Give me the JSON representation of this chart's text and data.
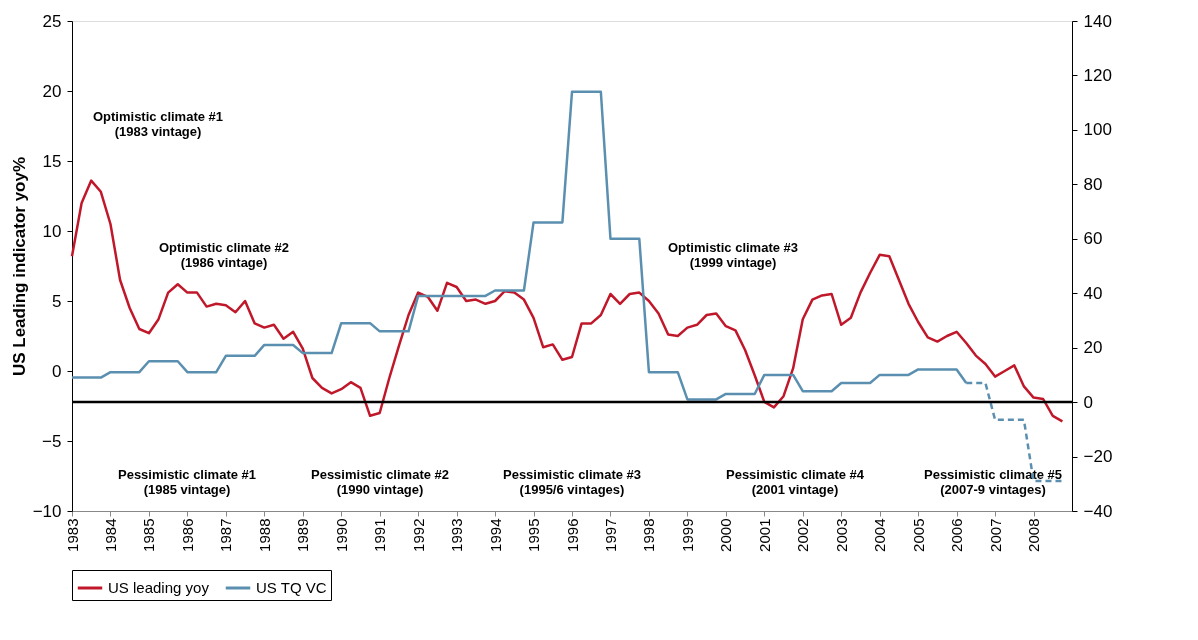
{
  "chart_data": {
    "type": "line",
    "ylabel": "US Leading indicator yoy%",
    "x": [
      1983,
      1983.25,
      1983.5,
      1983.75,
      1984,
      1984.25,
      1984.5,
      1984.75,
      1985,
      1985.25,
      1985.5,
      1985.75,
      1986,
      1986.25,
      1986.5,
      1986.75,
      1987,
      1987.25,
      1987.5,
      1987.75,
      1988,
      1988.25,
      1988.5,
      1988.75,
      1989,
      1989.25,
      1989.5,
      1989.75,
      1990,
      1990.25,
      1990.5,
      1990.75,
      1991,
      1991.25,
      1991.5,
      1991.75,
      1992,
      1992.25,
      1992.5,
      1992.75,
      1993,
      1993.25,
      1993.5,
      1993.75,
      1994,
      1994.25,
      1994.5,
      1994.75,
      1995,
      1995.25,
      1995.5,
      1995.75,
      1996,
      1996.25,
      1996.5,
      1996.75,
      1997,
      1997.25,
      1997.5,
      1997.75,
      1998,
      1998.25,
      1998.5,
      1998.75,
      1999,
      1999.25,
      1999.5,
      1999.75,
      2000,
      2000.25,
      2000.5,
      2000.75,
      2001,
      2001.25,
      2001.5,
      2001.75,
      2002,
      2002.25,
      2002.5,
      2002.75,
      2003,
      2003.25,
      2003.5,
      2003.75,
      2004,
      2004.25,
      2004.5,
      2004.75,
      2005,
      2005.25,
      2005.5,
      2005.75,
      2006,
      2006.25,
      2006.5,
      2006.75,
      2007,
      2007.25,
      2007.5,
      2007.75,
      2008,
      2008.25,
      2008.5,
      2008.75
    ],
    "series": [
      {
        "name": "US leading yoy",
        "color": "#c0182a",
        "values": [
          8.2,
          12.0,
          13.6,
          12.8,
          10.5,
          6.5,
          4.5,
          3.0,
          2.7,
          3.7,
          5.6,
          6.2,
          5.6,
          5.6,
          4.6,
          4.8,
          4.7,
          4.2,
          5.0,
          3.4,
          3.1,
          3.3,
          2.3,
          2.8,
          1.6,
          -0.5,
          -1.2,
          -1.6,
          -1.3,
          -0.8,
          -1.2,
          -3.2,
          -3.0,
          -0.5,
          1.8,
          4.0,
          5.6,
          5.3,
          4.3,
          6.3,
          6.0,
          5.0,
          5.1,
          4.8,
          5.0,
          5.7,
          5.6,
          5.1,
          3.8,
          1.7,
          1.9,
          0.8,
          1.0,
          3.4,
          3.4,
          4.0,
          5.5,
          4.8,
          5.5,
          5.6,
          5.0,
          4.1,
          2.6,
          2.5,
          3.1,
          3.3,
          4.0,
          4.1,
          3.2,
          2.9,
          1.5,
          -0.3,
          -2.2,
          -2.6,
          -1.8,
          0.2,
          3.7,
          5.1,
          5.4,
          5.5,
          3.3,
          3.8,
          5.6,
          7.0,
          8.3,
          8.2,
          6.5,
          4.8,
          3.5,
          2.4,
          2.1,
          2.5,
          2.8,
          2.0,
          1.1,
          0.5,
          -0.4,
          0.0,
          0.4,
          -1.1,
          -1.9,
          -2.0,
          -3.2,
          -3.6
        ]
      },
      {
        "name": "US TQ VC",
        "color": "#5b8fb0",
        "axis": "y2",
        "x": [
          1983,
          1983.25,
          1983.5,
          1983.75,
          1984,
          1984.25,
          1984.5,
          1984.75,
          1985,
          1985.25,
          1985.5,
          1985.75,
          1986,
          1986.25,
          1986.5,
          1986.75,
          1987,
          1987.25,
          1987.5,
          1987.75,
          1988,
          1988.25,
          1988.5,
          1988.75,
          1989,
          1989.25,
          1989.5,
          1989.75,
          1990,
          1990.25,
          1990.5,
          1990.75,
          1991,
          1991.25,
          1991.5,
          1991.75,
          1992,
          1992.25,
          1992.5,
          1992.75,
          1993,
          1993.25,
          1993.5,
          1993.75,
          1994,
          1994.25,
          1994.5,
          1994.75,
          1995,
          1995.25,
          1995.5,
          1995.75,
          1996,
          1996.25,
          1996.5,
          1996.75,
          1997,
          1997.25,
          1997.5,
          1997.75,
          1998,
          1998.25,
          1998.5,
          1998.75,
          1999,
          1999.25,
          1999.5,
          1999.75,
          2000,
          2000.25,
          2000.5,
          2000.75,
          2001,
          2001.25,
          2001.5,
          2001.75,
          2002,
          2002.25,
          2002.5,
          2002.75,
          2003,
          2003.25,
          2003.5,
          2003.75,
          2004,
          2004.25,
          2004.5,
          2004.75,
          2005,
          2005.25,
          2005.5,
          2005.75,
          2006,
          2006.25
        ],
        "values": [
          9,
          9,
          9,
          9,
          11,
          11,
          11,
          11,
          15,
          15,
          15,
          15,
          11,
          11,
          11,
          11,
          17,
          17,
          17,
          17,
          21,
          21,
          21,
          21,
          18,
          18,
          18,
          18,
          29,
          29,
          29,
          29,
          26,
          26,
          26,
          26,
          39,
          39,
          39,
          39,
          39,
          39,
          39,
          39,
          41,
          41,
          41,
          41,
          66,
          66,
          66,
          66,
          114,
          114,
          114,
          114,
          60,
          60,
          60,
          60,
          11,
          11,
          11,
          11,
          1,
          1,
          1,
          1,
          3,
          3,
          3,
          3,
          10,
          10,
          10,
          10,
          4,
          4,
          4,
          4,
          7,
          7,
          7,
          7,
          10,
          10,
          10,
          10,
          12,
          12,
          12,
          12,
          12,
          7
        ]
      },
      {
        "color": "#5b8fb0",
        "axis": "y2",
        "line_style": "dashed",
        "x": [
          2006.25,
          2006.5,
          2006.75,
          2007,
          2007.25,
          2007.5,
          2007.75,
          2008,
          2008.25,
          2008.5,
          2008.75
        ],
        "values": [
          7,
          7,
          7,
          -6.5,
          -6.5,
          -6.5,
          -6.5,
          -29,
          -29,
          -29,
          -29
        ]
      }
    ],
    "xlim": [
      1983,
      2009
    ],
    "xticks": [
      1983,
      1984,
      1985,
      1986,
      1987,
      1988,
      1989,
      1990,
      1991,
      1992,
      1993,
      1994,
      1995,
      1996,
      1997,
      1998,
      1999,
      2000,
      2001,
      2002,
      2003,
      2004,
      2005,
      2006,
      2007,
      2008
    ],
    "ylim": [
      -10,
      25
    ],
    "yticks": [
      -10,
      -5,
      0,
      5,
      10,
      15,
      20,
      25
    ],
    "y2lim": [
      -40,
      140
    ],
    "y2ticks": [
      -40,
      -20,
      0,
      20,
      40,
      60,
      80,
      100,
      120,
      140
    ],
    "ref_lines": [
      {
        "axis": "y2",
        "value": 0,
        "color": "#000000"
      }
    ],
    "annotations": [
      "Optimistic climate #1\n(1983 vintage)",
      "Optimistic climate #2\n(1986 vintage)",
      "Pessimistic climate #1\n(1985 vintage)",
      "Pessimistic climate #2\n(1990 vintage)",
      "Pessimistic climate #3\n(1995/6 vintages)",
      "Optimistic climate #3\n(1999 vintage)",
      "Pessimistic climate #4\n(2001 vintage)",
      "Pessimistic climate #5\n(2007-9 vintages)"
    ],
    "legend": "bottom",
    "grid": false,
    "line_style": "solid",
    "marker": "none"
  }
}
